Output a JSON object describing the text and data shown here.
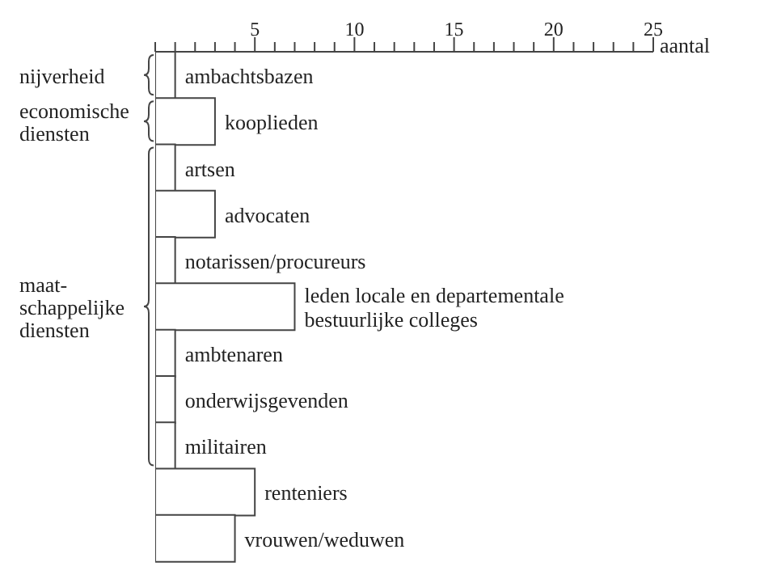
{
  "chart_data": {
    "type": "bar",
    "orientation": "horizontal",
    "xlabel": "aantal",
    "categories": [
      "ambachtsbazen",
      "kooplieden",
      "artsen",
      "advocaten",
      "notarissen/procureurs",
      "leden locale en departementale bestuurlijke colleges",
      "ambtenaren",
      "onderwijsgevenden",
      "militairen",
      "renteniers",
      "vrouwen/weduwen"
    ],
    "values": [
      1,
      3,
      1,
      3,
      1,
      7,
      1,
      1,
      1,
      5,
      4
    ],
    "color": "#ffffff",
    "xlim": [
      0,
      25
    ],
    "xticks": [
      {
        "value": 0,
        "label": null
      },
      {
        "value": 1,
        "label": null
      },
      {
        "value": 2,
        "label": null
      },
      {
        "value": 3,
        "label": null
      },
      {
        "value": 4,
        "label": null
      },
      5,
      {
        "value": 6,
        "label": null
      },
      {
        "value": 7,
        "label": null
      },
      {
        "value": 8,
        "label": null
      },
      {
        "value": 9,
        "label": null
      },
      10,
      {
        "value": 11,
        "label": null
      },
      {
        "value": 12,
        "label": null
      },
      {
        "value": 13,
        "label": null
      },
      {
        "value": 14,
        "label": null
      },
      15,
      {
        "value": 16,
        "label": null
      },
      {
        "value": 17,
        "label": null
      },
      {
        "value": 18,
        "label": null
      },
      {
        "value": 19,
        "label": null
      },
      20,
      {
        "value": 21,
        "label": null
      },
      {
        "value": 22,
        "label": null
      },
      {
        "value": 23,
        "label": null
      },
      {
        "value": 24,
        "label": null
      },
      25
    ],
    "annotations": [
      "nijverheid",
      "economische diensten",
      "maat-schappelijke diensten"
    ]
  }
}
